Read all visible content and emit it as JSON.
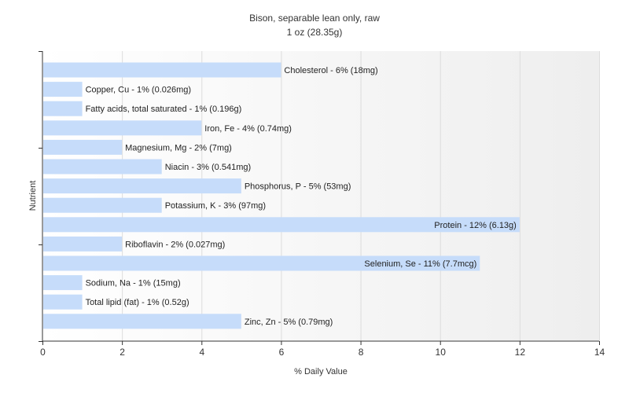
{
  "chart_data": {
    "type": "bar",
    "orientation": "horizontal",
    "title": "Bison, separable lean only, raw",
    "subtitle": "1 oz (28.35g)",
    "xlabel": "% Daily Value",
    "ylabel": "Nutrient",
    "xlim": [
      0,
      14
    ],
    "xticks": [
      0,
      2,
      4,
      6,
      8,
      10,
      12,
      14
    ],
    "grid": true,
    "bar_color": "#c6dcfa",
    "background_gradient": [
      "#ffffff",
      "#eeeeee"
    ],
    "categories": [
      "Cholesterol",
      "Copper, Cu",
      "Fatty acids, total saturated",
      "Iron, Fe",
      "Magnesium, Mg",
      "Niacin",
      "Phosphorus, P",
      "Potassium, K",
      "Protein",
      "Riboflavin",
      "Selenium, Se",
      "Sodium, Na",
      "Total lipid (fat)",
      "Zinc, Zn"
    ],
    "values": [
      6,
      1,
      1,
      4,
      2,
      3,
      5,
      3,
      12,
      2,
      11,
      1,
      1,
      5
    ],
    "labels": [
      "Cholesterol - 6% (18mg)",
      "Copper, Cu - 1% (0.026mg)",
      "Fatty acids, total saturated - 1% (0.196g)",
      "Iron, Fe - 4% (0.74mg)",
      "Magnesium, Mg - 2% (7mg)",
      "Niacin - 3% (0.541mg)",
      "Phosphorus, P - 5% (53mg)",
      "Potassium, K - 3% (97mg)",
      "Protein - 12% (6.13g)",
      "Riboflavin - 2% (0.027mg)",
      "Selenium, Se - 11% (7.7mcg)",
      "Sodium, Na - 1% (15mg)",
      "Total lipid (fat) - 1% (0.52g)",
      "Zinc, Zn - 5% (0.79mg)"
    ]
  }
}
